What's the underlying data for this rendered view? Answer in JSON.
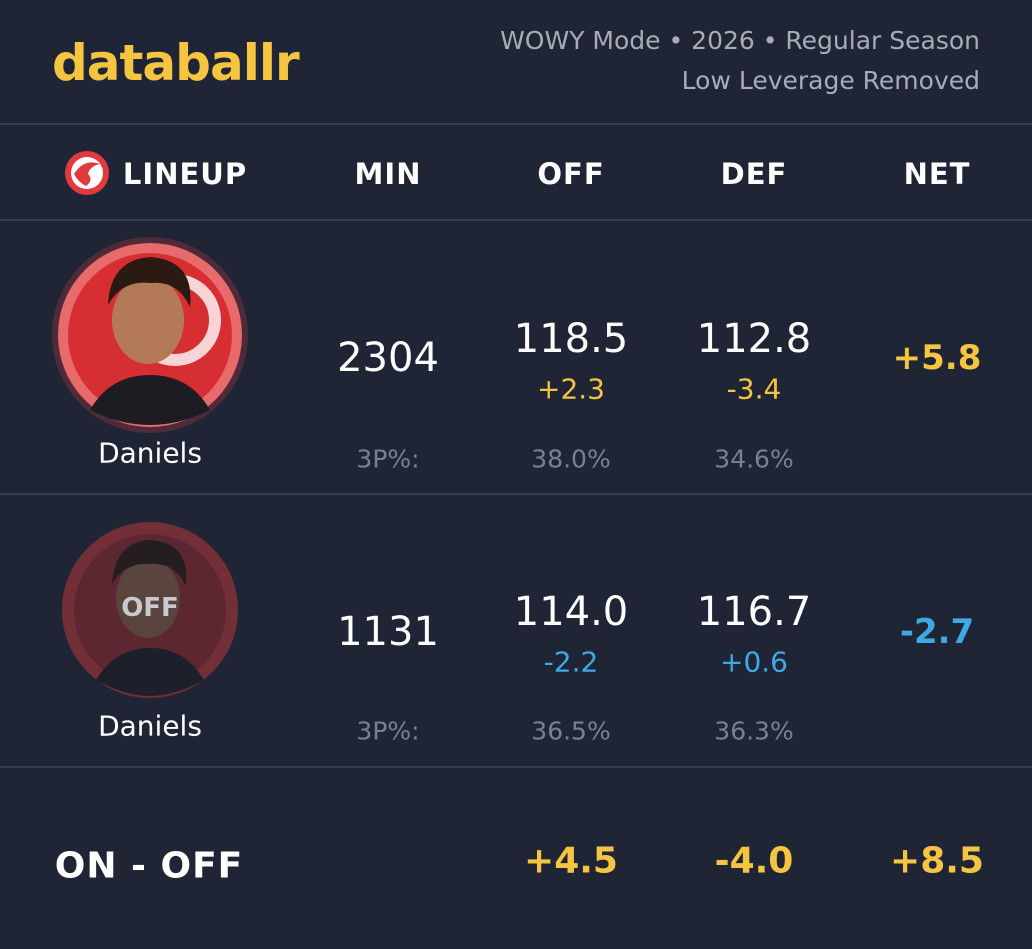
{
  "header": {
    "logo": "databallr",
    "subtitle": [
      "WOWY Mode • 2026 • Regular Season",
      "Low Leverage Removed"
    ]
  },
  "table": {
    "columns": [
      "LINEUP",
      "MIN",
      "OFF",
      "DEF",
      "NET"
    ],
    "rows": [
      {
        "player": "Daniels",
        "min": "2304",
        "off": "118.5",
        "off_diff": "+2.3",
        "def": "112.8",
        "def_diff": "-3.4",
        "net": "+5.8",
        "shooting_label": "3P%:",
        "off_3p": "38.0%",
        "def_3p": "34.6%"
      },
      {
        "player": "Daniels",
        "status": "OFF",
        "min": "1131",
        "off": "114.0",
        "off_diff": "-2.2",
        "def": "116.7",
        "def_diff": "+0.6",
        "net": "-2.7",
        "shooting_label": "3P%:",
        "off_3p": "36.5%",
        "def_3p": "36.3%"
      }
    ],
    "footer": {
      "label": "ON - OFF",
      "off": "+4.5",
      "def": "-4.0",
      "net": "+8.5"
    }
  }
}
